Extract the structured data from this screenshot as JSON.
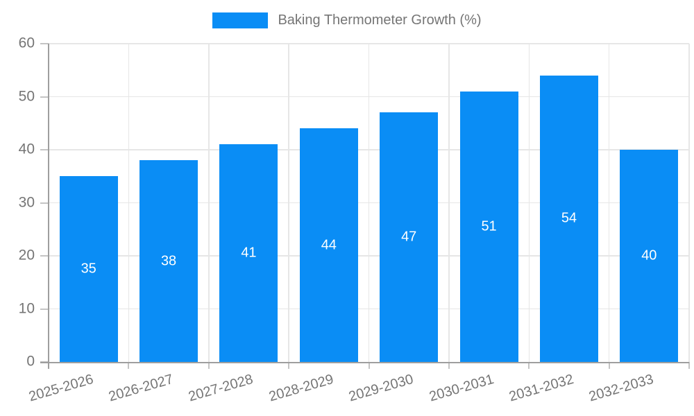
{
  "chart_data": {
    "type": "bar",
    "title": "Baking Thermometer Growth (%)",
    "categories": [
      "2025-2026",
      "2026-2027",
      "2027-2028",
      "2028-2029",
      "2029-2030",
      "2030-2031",
      "2031-2032",
      "2032-2033"
    ],
    "values": [
      35,
      38,
      41,
      44,
      47,
      51,
      54,
      40
    ],
    "value_labels": [
      "35",
      "38",
      "41",
      "44",
      "47",
      "51",
      "54",
      "40"
    ],
    "xlabel": "",
    "ylabel": "",
    "ylim": [
      0,
      60
    ],
    "yticks": [
      0,
      10,
      20,
      30,
      40,
      50,
      60
    ],
    "grid": true,
    "legend_position": "top",
    "legend_label": "Baking Thermometer Growth (%)",
    "colors": {
      "bar": "#0a8df5",
      "bar_value_text": "#ffffff",
      "axis_line": "#9e9e9e",
      "gridline": "#e6e6e6",
      "tick_mark": "#c4c4c4",
      "tick_text": "#757575",
      "legend_text": "#757575",
      "background": "#ffffff"
    }
  }
}
